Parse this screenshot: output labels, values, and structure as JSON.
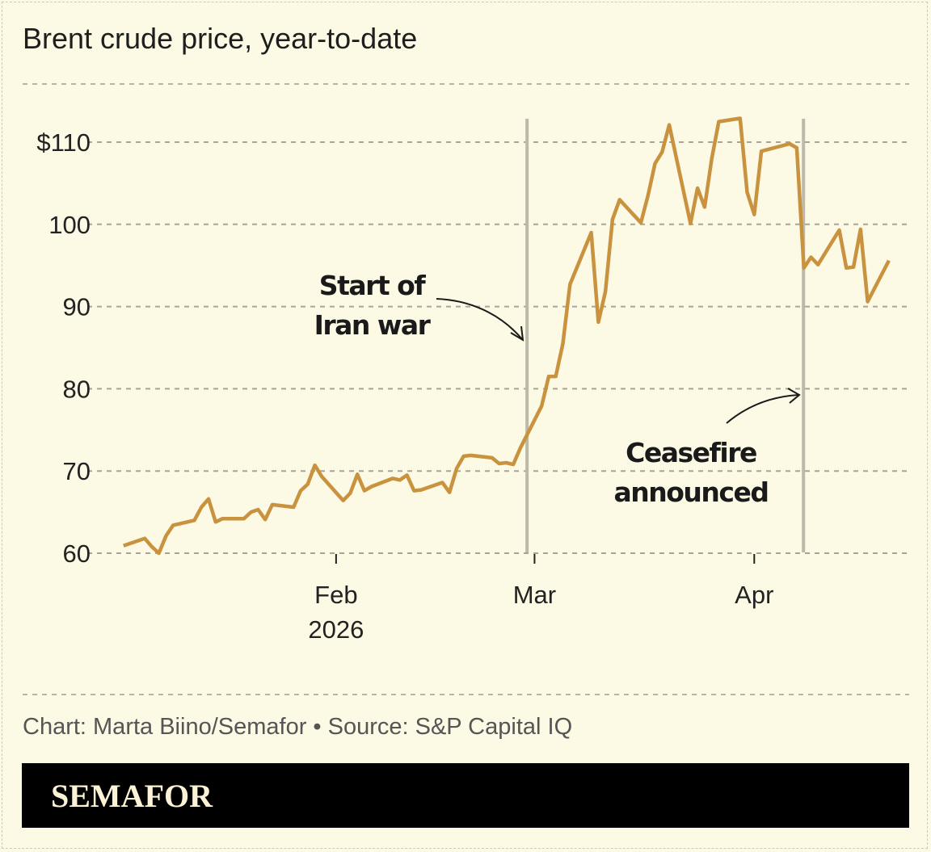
{
  "chart_data": {
    "type": "line",
    "title": "Brent crude price, year-to-date",
    "xlabel": "",
    "ylabel": "",
    "ylim": [
      60,
      113
    ],
    "yticks": [
      60,
      70,
      80,
      90,
      100,
      110
    ],
    "ytick_labels": [
      "60",
      "70",
      "80",
      "90",
      "100",
      "$110"
    ],
    "xticks": [
      {
        "date": "2026-02-01",
        "label": "Feb",
        "sublabel": "2026"
      },
      {
        "date": "2026-03-01",
        "label": "Mar",
        "sublabel": ""
      },
      {
        "date": "2026-04-01",
        "label": "Apr",
        "sublabel": ""
      }
    ],
    "grid": true,
    "line_color": "#c9923f",
    "series": [
      {
        "x": [
          "2026-01-02",
          "2026-01-05",
          "2026-01-06",
          "2026-01-07",
          "2026-01-08",
          "2026-01-09",
          "2026-01-12",
          "2026-01-13",
          "2026-01-14",
          "2026-01-15",
          "2026-01-16",
          "2026-01-19",
          "2026-01-20",
          "2026-01-21",
          "2026-01-22",
          "2026-01-23",
          "2026-01-26",
          "2026-01-27",
          "2026-01-28",
          "2026-01-29",
          "2026-01-30",
          "2026-02-02",
          "2026-02-03",
          "2026-02-04",
          "2026-02-05",
          "2026-02-06",
          "2026-02-09",
          "2026-02-10",
          "2026-02-11",
          "2026-02-12",
          "2026-02-13",
          "2026-02-16",
          "2026-02-17",
          "2026-02-18",
          "2026-02-19",
          "2026-02-20",
          "2026-02-23",
          "2026-02-24",
          "2026-02-25",
          "2026-02-26",
          "2026-02-27",
          "2026-03-02",
          "2026-03-03",
          "2026-03-04",
          "2026-03-05",
          "2026-03-06",
          "2026-03-09",
          "2026-03-10",
          "2026-03-11",
          "2026-03-12",
          "2026-03-13",
          "2026-03-16",
          "2026-03-17",
          "2026-03-18",
          "2026-03-19",
          "2026-03-20",
          "2026-03-23",
          "2026-03-24",
          "2026-03-25",
          "2026-03-26",
          "2026-03-27",
          "2026-03-30",
          "2026-03-31",
          "2026-04-01",
          "2026-04-02",
          "2026-04-06",
          "2026-04-07",
          "2026-04-08",
          "2026-04-09",
          "2026-04-10",
          "2026-04-13",
          "2026-04-14",
          "2026-04-15",
          "2026-04-16",
          "2026-04-17",
          "2026-04-20"
        ],
        "values": [
          60.9,
          61.8,
          60.8,
          60.0,
          62.1,
          63.4,
          64.0,
          65.6,
          66.6,
          63.8,
          64.2,
          64.2,
          65.0,
          65.3,
          64.1,
          65.9,
          65.6,
          67.6,
          68.4,
          70.7,
          69.3,
          66.4,
          67.3,
          69.6,
          67.6,
          68.1,
          69.1,
          68.9,
          69.5,
          67.6,
          67.7,
          68.6,
          67.4,
          70.3,
          71.8,
          71.9,
          71.6,
          70.9,
          71.0,
          70.8,
          72.8,
          77.9,
          81.5,
          81.5,
          85.5,
          92.7,
          99.0,
          88.1,
          91.8,
          100.6,
          103.0,
          100.2,
          103.5,
          107.4,
          108.8,
          112.1,
          100.1,
          104.4,
          102.1,
          108.0,
          112.5,
          112.9,
          103.9,
          101.2,
          108.9,
          109.8,
          109.3,
          94.7,
          96.0,
          95.1,
          99.3,
          94.7,
          94.8,
          99.4,
          90.6,
          95.6
        ]
      }
    ],
    "annotations": [
      {
        "date": "2026-02-28",
        "lines": [
          "Start of",
          "Iran war"
        ]
      },
      {
        "date": "2026-04-08",
        "lines": [
          "Ceasefire",
          "announced"
        ]
      }
    ]
  },
  "footer": {
    "source": "Chart: Marta Biino/Semafor • Source: S&P Capital IQ",
    "brand": "SEMAFOR"
  }
}
